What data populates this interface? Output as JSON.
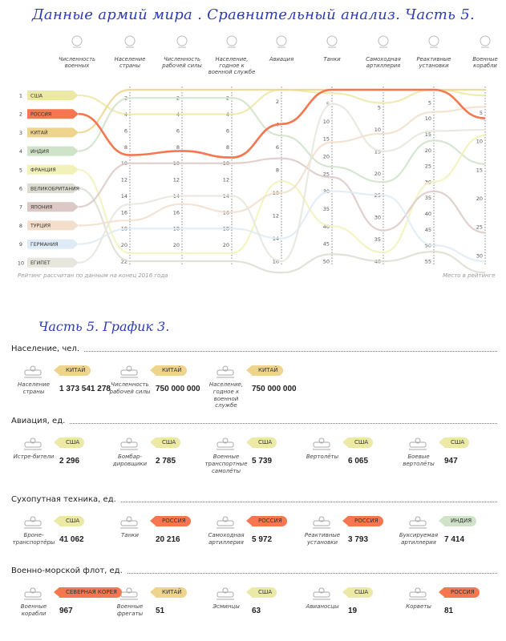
{
  "main_title": "Данные армий мира . Сравнительный анализ. Часть 5.",
  "section_title": "Часть 5. График 3.",
  "notes": {
    "rating": "Рейтинг рассчитан по данным на конец 2016 года",
    "place": "Место в рейтинге"
  },
  "colors": {
    "США": "#ece8a6",
    "РОССИЯ": "#f5764f",
    "КИТАЙ": "#efd48d",
    "ИНДИЯ": "#cfe3c8",
    "ФРАНЦИЯ": "#f2f2b8",
    "ВЕЛИКОБРИТАНИЯ": "#ddddd2",
    "ЯПОНИЯ": "#dcc8c4",
    "ТУРЦИЯ": "#f2decb",
    "ГЕРМАНИЯ": "#deebf6",
    "ЕГИПЕТ": "#e6e6dd",
    "СЕВЕРНАЯ КОРЕЯ": "#f5764f"
  },
  "chart_data": {
    "type": "line",
    "subtype": "parallel-coordinates",
    "ranks": [
      "1",
      "2",
      "3",
      "4",
      "5",
      "6",
      "7",
      "8",
      "9",
      "10"
    ],
    "countries": [
      "США",
      "РОССИЯ",
      "КИТАЙ",
      "ИНДИЯ",
      "ФРАНЦИЯ",
      "ВЕЛИКОБРИТАНИЯ",
      "ЯПОНИЯ",
      "ТУРЦИЯ",
      "ГЕРМАНИЯ",
      "ЕГИПЕТ"
    ],
    "highlight": "РОССИЯ",
    "axes": [
      {
        "label": "Численность военных",
        "icon": "soldier-icon",
        "min": 1,
        "max": 10,
        "ticks": []
      },
      {
        "label": "Население страны",
        "icon": "population-icon",
        "min": 1,
        "max": 22,
        "ticks": [
          "2",
          "4",
          "6",
          "8",
          "10",
          "12",
          "14",
          "16",
          "18",
          "20",
          "22"
        ]
      },
      {
        "label": "Численность рабочей силы",
        "icon": "workforce-icon",
        "min": 1,
        "max": 22,
        "ticks": [
          "2",
          "4",
          "6",
          "8",
          "10",
          "12",
          "14",
          "16",
          "18",
          "20"
        ]
      },
      {
        "label": "Население, годное к военной службе",
        "icon": "fit-for-service-icon",
        "min": 1,
        "max": 22,
        "ticks": [
          "2",
          "4",
          "6",
          "8",
          "10",
          "12",
          "14",
          "16",
          "18",
          "20"
        ]
      },
      {
        "label": "Авиация",
        "icon": "aviation-icon",
        "min": 1,
        "max": 16,
        "ticks": [
          "2",
          "4",
          "6",
          "8",
          "10",
          "12",
          "14",
          "16"
        ]
      },
      {
        "label": "Танки",
        "icon": "tank-icon",
        "min": 1,
        "max": 50,
        "ticks": [
          "5",
          "10",
          "15",
          "20",
          "25",
          "30",
          "35",
          "40",
          "45",
          "50"
        ]
      },
      {
        "label": "Самоходная артиллерия",
        "icon": "artillery-icon",
        "min": 1,
        "max": 40,
        "ticks": [
          "5",
          "10",
          "15",
          "20",
          "25",
          "30",
          "35",
          "40"
        ]
      },
      {
        "label": "Реактивные установки",
        "icon": "rocket-launcher-icon",
        "min": 1,
        "max": 55,
        "ticks": [
          "5",
          "10",
          "15",
          "20",
          "25",
          "30",
          "35",
          "40",
          "45",
          "50",
          "55"
        ]
      },
      {
        "label": "Военные корабли",
        "icon": "warship-icon",
        "min": 1,
        "max": 31,
        "ticks": [
          "5",
          "10",
          "15",
          "20",
          "25",
          "30"
        ]
      }
    ],
    "series": [
      {
        "name": "США",
        "values": [
          1,
          4,
          4,
          4,
          1,
          2,
          4,
          1,
          2
        ]
      },
      {
        "name": "РОССИЯ",
        "values": [
          2,
          9,
          8.5,
          9.3,
          4,
          1,
          1,
          1,
          6
        ]
      },
      {
        "name": "КИТАЙ",
        "values": [
          3,
          1,
          1,
          1,
          1,
          1,
          1,
          1,
          1
        ]
      },
      {
        "name": "ИНДИЯ",
        "values": [
          4,
          2,
          2,
          2,
          5,
          23,
          22,
          17,
          14
        ]
      },
      {
        "name": "ФРАНЦИЯ",
        "values": [
          5,
          21,
          21,
          21,
          9,
          40,
          38,
          30,
          9
        ]
      },
      {
        "name": "ВЕЛИКОБРИТАНИЯ",
        "values": [
          6,
          22,
          22,
          22,
          17,
          48,
          40,
          52,
          33
        ]
      },
      {
        "name": "ЯПОНИЯ",
        "values": [
          7,
          10,
          10,
          10,
          7,
          26,
          33,
          33,
          26
        ]
      },
      {
        "name": "ТУРЦИЯ",
        "values": [
          8,
          17,
          15,
          16,
          10,
          16,
          11,
          8,
          4
        ]
      },
      {
        "name": "ГЕРМАНИЯ",
        "values": [
          9,
          18,
          18,
          18,
          14,
          30,
          25,
          50,
          31
        ]
      },
      {
        "name": "ЕГИПЕТ",
        "values": [
          10,
          15,
          14,
          14,
          16,
          5,
          15,
          14,
          8
        ]
      }
    ]
  },
  "sections": [
    {
      "title": "Население, чел.",
      "items": [
        {
          "icon": "population-icon",
          "label": "Население страны",
          "value": "1 373 541 278",
          "country": "КИТАЙ"
        },
        {
          "icon": "workforce-icon",
          "label": "Численность рабочей силы",
          "value": "750 000 000",
          "country": "КИТАЙ"
        },
        {
          "icon": "fit-for-service-icon",
          "label": "Население, годное к военной службе",
          "value": "750 000 000",
          "country": "КИТАЙ"
        }
      ]
    },
    {
      "title": "Авиация, ед.",
      "items": [
        {
          "icon": "fighter-jet-icon",
          "label": "Истре-бители",
          "value": "2 296",
          "country": "США"
        },
        {
          "icon": "bomber-icon",
          "label": "Бомбар-дировщики",
          "value": "2 785",
          "country": "США"
        },
        {
          "icon": "transport-plane-icon",
          "label": "Военные транспортные самолёты",
          "value": "5 739",
          "country": "США"
        },
        {
          "icon": "helicopter-icon",
          "label": "Вертолёты",
          "value": "6 065",
          "country": "США"
        },
        {
          "icon": "attack-helicopter-icon",
          "label": "Боевые вертолёты",
          "value": "947",
          "country": "США"
        }
      ]
    },
    {
      "title": "Сухопутная техника, ед.",
      "items": [
        {
          "icon": "apc-icon",
          "label": "Броне-транспортёры",
          "value": "41 062",
          "country": "США"
        },
        {
          "icon": "tank-icon",
          "label": "Танки",
          "value": "20 216",
          "country": "РОССИЯ"
        },
        {
          "icon": "artillery-icon",
          "label": "Самоходная артиллерия",
          "value": "5 972",
          "country": "РОССИЯ"
        },
        {
          "icon": "rocket-launcher-icon",
          "label": "Реактивные установки",
          "value": "3 793",
          "country": "РОССИЯ"
        },
        {
          "icon": "towed-artillery-icon",
          "label": "Буксируемая артиллерия",
          "value": "7 414",
          "country": "ИНДИЯ"
        }
      ]
    },
    {
      "title": "Военно-морской флот, ед.",
      "items": [
        {
          "icon": "warship-icon",
          "label": "Военные корабли",
          "value": "967",
          "country": "СЕВЕРНАЯ КОРЕЯ"
        },
        {
          "icon": "frigate-icon",
          "label": "Военные фрегаты",
          "value": "51",
          "country": "КИТАЙ"
        },
        {
          "icon": "destroyer-icon",
          "label": "Эсминцы",
          "value": "63",
          "country": "США"
        },
        {
          "icon": "aircraft-carrier-icon",
          "label": "Авианосцы",
          "value": "19",
          "country": "США"
        },
        {
          "icon": "corvette-icon",
          "label": "Корветы",
          "value": "81",
          "country": "РОССИЯ"
        }
      ]
    }
  ]
}
